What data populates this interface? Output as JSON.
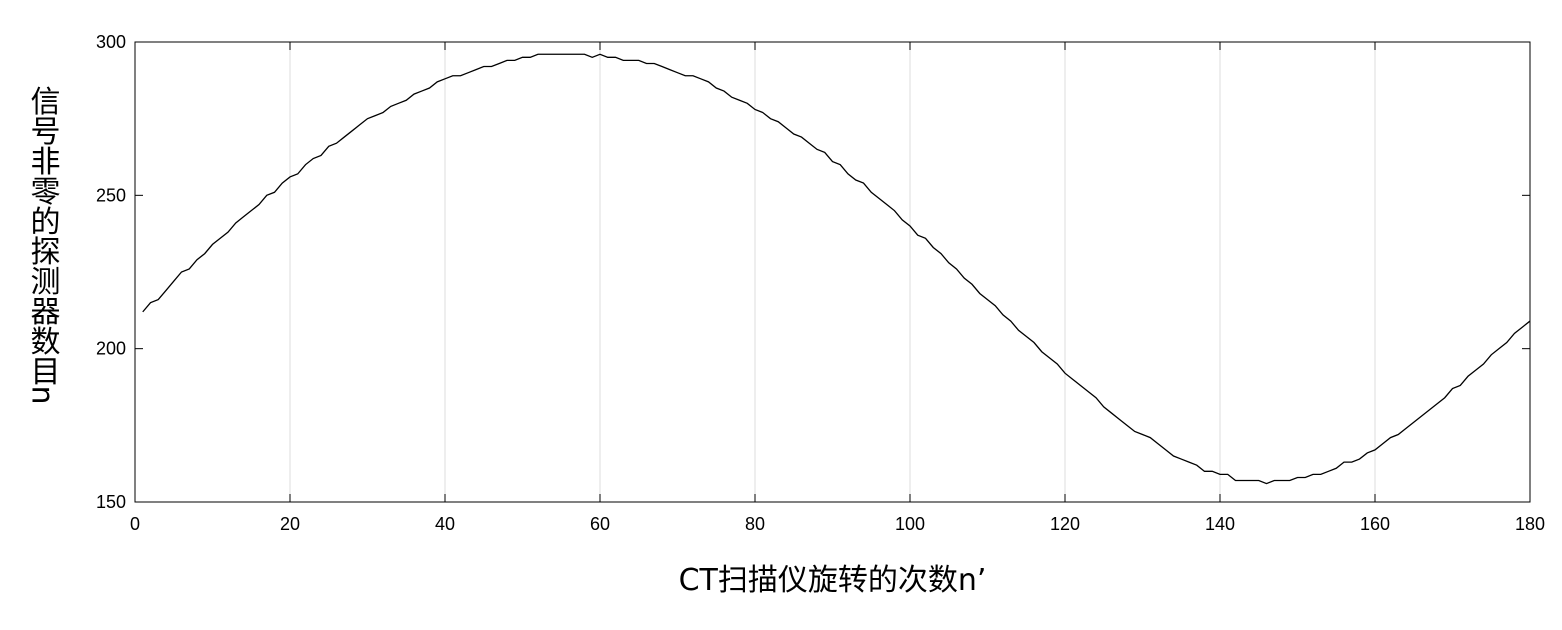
{
  "chart_data": {
    "type": "line",
    "title": "",
    "xlabel": "CT扫描仪旋转的次数n’",
    "ylabel": "信号非零的探测器数目n",
    "xlim": [
      0,
      180
    ],
    "ylim": [
      150,
      300
    ],
    "xticks": [
      "0",
      "20",
      "40",
      "60",
      "80",
      "100",
      "120",
      "140",
      "160",
      "180"
    ],
    "yticks": [
      "150",
      "200",
      "250",
      "300"
    ],
    "grid": "vertical",
    "series": [
      {
        "color": "#000000",
        "x": [
          1,
          2,
          3,
          4,
          5,
          6,
          7,
          8,
          9,
          10,
          11,
          12,
          13,
          14,
          15,
          16,
          17,
          18,
          19,
          20,
          21,
          22,
          23,
          24,
          25,
          26,
          27,
          28,
          29,
          30,
          31,
          32,
          33,
          34,
          35,
          36,
          37,
          38,
          39,
          40,
          41,
          42,
          43,
          44,
          45,
          46,
          47,
          48,
          49,
          50,
          51,
          52,
          53,
          54,
          55,
          56,
          57,
          58,
          59,
          60,
          61,
          62,
          63,
          64,
          65,
          66,
          67,
          68,
          69,
          70,
          71,
          72,
          73,
          74,
          75,
          76,
          77,
          78,
          79,
          80,
          81,
          82,
          83,
          84,
          85,
          86,
          87,
          88,
          89,
          90,
          91,
          92,
          93,
          94,
          95,
          96,
          97,
          98,
          99,
          100,
          101,
          102,
          103,
          104,
          105,
          106,
          107,
          108,
          109,
          110,
          111,
          112,
          113,
          114,
          115,
          116,
          117,
          118,
          119,
          120,
          121,
          122,
          123,
          124,
          125,
          126,
          127,
          128,
          129,
          130,
          131,
          132,
          133,
          134,
          135,
          136,
          137,
          138,
          139,
          140,
          141,
          142,
          143,
          144,
          145,
          146,
          147,
          148,
          149,
          150,
          151,
          152,
          153,
          154,
          155,
          156,
          157,
          158,
          159,
          160,
          161,
          162,
          163,
          164,
          165,
          166,
          167,
          168,
          169,
          170,
          171,
          172,
          173,
          174,
          175,
          176,
          177,
          178,
          179,
          180
        ],
        "values": [
          212,
          215,
          216,
          219,
          222,
          225,
          226,
          229,
          231,
          234,
          236,
          238,
          241,
          243,
          245,
          247,
          250,
          251,
          254,
          256,
          257,
          260,
          262,
          263,
          266,
          267,
          269,
          271,
          273,
          275,
          276,
          277,
          279,
          280,
          281,
          283,
          284,
          285,
          287,
          288,
          289,
          289,
          290,
          291,
          292,
          292,
          293,
          294,
          294,
          295,
          295,
          296,
          296,
          296,
          296,
          296,
          296,
          296,
          295,
          296,
          295,
          295,
          294,
          294,
          294,
          293,
          293,
          292,
          291,
          290,
          289,
          289,
          288,
          287,
          285,
          284,
          282,
          281,
          280,
          278,
          277,
          275,
          274,
          272,
          270,
          269,
          267,
          265,
          264,
          261,
          260,
          257,
          255,
          254,
          251,
          249,
          247,
          245,
          242,
          240,
          237,
          236,
          233,
          231,
          228,
          226,
          223,
          221,
          218,
          216,
          214,
          211,
          209,
          206,
          204,
          202,
          199,
          197,
          195,
          192,
          190,
          188,
          186,
          184,
          181,
          179,
          177,
          175,
          173,
          172,
          171,
          169,
          167,
          165,
          164,
          163,
          162,
          160,
          160,
          159,
          159,
          157,
          157,
          157,
          157,
          156,
          157,
          157,
          157,
          158,
          158,
          159,
          159,
          160,
          161,
          163,
          163,
          164,
          166,
          167,
          169,
          171,
          172,
          174,
          176,
          178,
          180,
          182,
          184,
          187,
          188,
          191,
          193,
          195,
          198,
          200,
          202,
          205,
          207,
          209
        ]
      }
    ]
  }
}
